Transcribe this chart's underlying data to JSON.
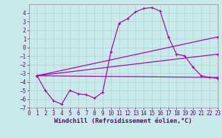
{
  "background_color": "#c8eaea",
  "grid_color": "#aacccc",
  "line_color": "#aa00aa",
  "xlabel": "Windchill (Refroidissement éolien,°C)",
  "xlim": [
    0,
    23
  ],
  "ylim": [
    -7,
    5
  ],
  "yticks": [
    -7,
    -6,
    -5,
    -4,
    -3,
    -2,
    -1,
    0,
    1,
    2,
    3,
    4
  ],
  "xticks": [
    0,
    1,
    2,
    3,
    4,
    5,
    6,
    7,
    8,
    9,
    10,
    11,
    12,
    13,
    14,
    15,
    16,
    17,
    18,
    19,
    20,
    21,
    22,
    23
  ],
  "line1_x": [
    1,
    2,
    3,
    4,
    5,
    6,
    7,
    8,
    9,
    10,
    11,
    12,
    13,
    14,
    15,
    16,
    17,
    18,
    19,
    20,
    21,
    22,
    23
  ],
  "line1_y": [
    -3.3,
    -5.0,
    -6.2,
    -6.6,
    -5.0,
    -5.4,
    -5.5,
    -5.9,
    -5.2,
    -0.5,
    2.8,
    3.3,
    4.1,
    4.5,
    4.6,
    4.2,
    1.2,
    -0.8,
    -1.0,
    -2.3,
    -3.3,
    -3.5,
    -3.6
  ],
  "line2_x": [
    1,
    23
  ],
  "line2_y": [
    -3.3,
    1.2
  ],
  "line3_x": [
    1,
    23
  ],
  "line3_y": [
    -3.3,
    -0.8
  ],
  "line4_x": [
    1,
    23
  ],
  "line4_y": [
    -3.3,
    -3.5
  ],
  "tickfont_size": 5.5,
  "xlabel_fontsize": 6.5
}
